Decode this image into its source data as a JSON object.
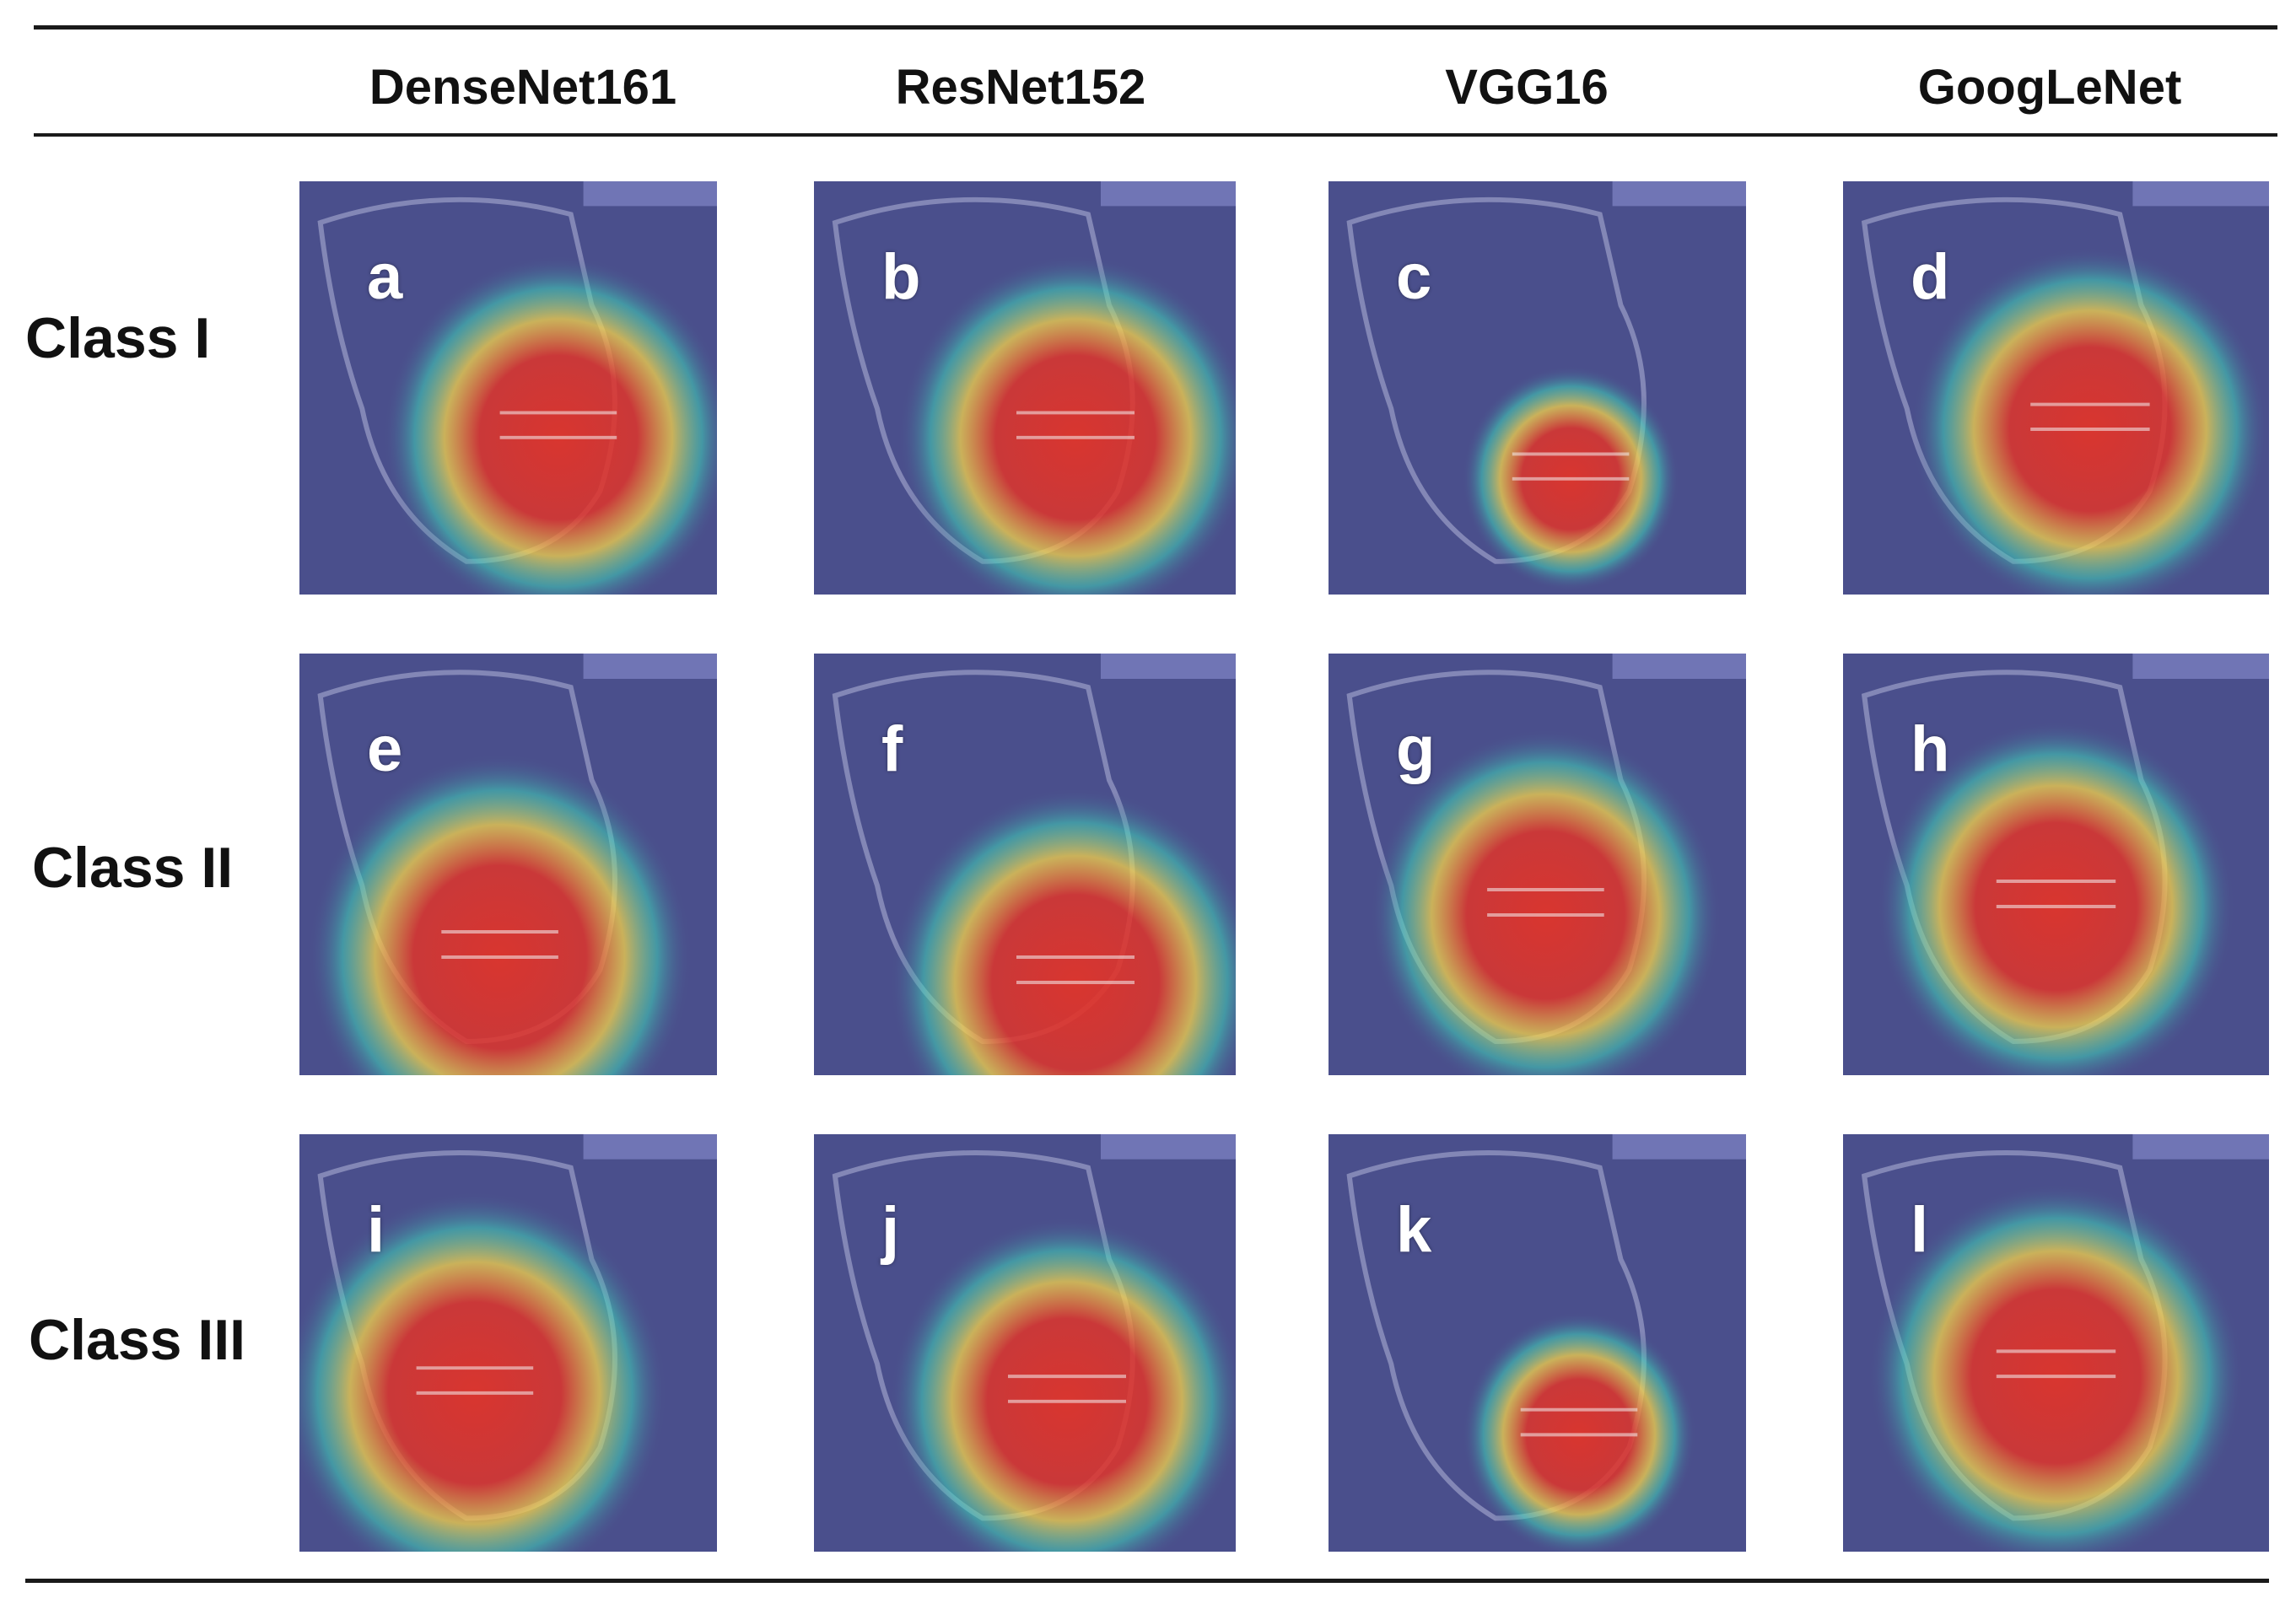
{
  "columns": [
    "DenseNet161",
    "ResNet152",
    "VGG16",
    "GoogLeNet"
  ],
  "rows": [
    {
      "label": "Class I",
      "panels": [
        "a",
        "b",
        "c",
        "d"
      ]
    },
    {
      "label": "Class II",
      "panels": [
        "e",
        "f",
        "g",
        "h"
      ]
    },
    {
      "label": "Class III",
      "panels": [
        "i",
        "j",
        "k",
        "l"
      ]
    }
  ],
  "colors": {
    "background_tint": "#4a4f8c",
    "heat_hot": "#e0342a",
    "heat_warm": "#f5d24a",
    "heat_cool": "#3fd3b8"
  }
}
